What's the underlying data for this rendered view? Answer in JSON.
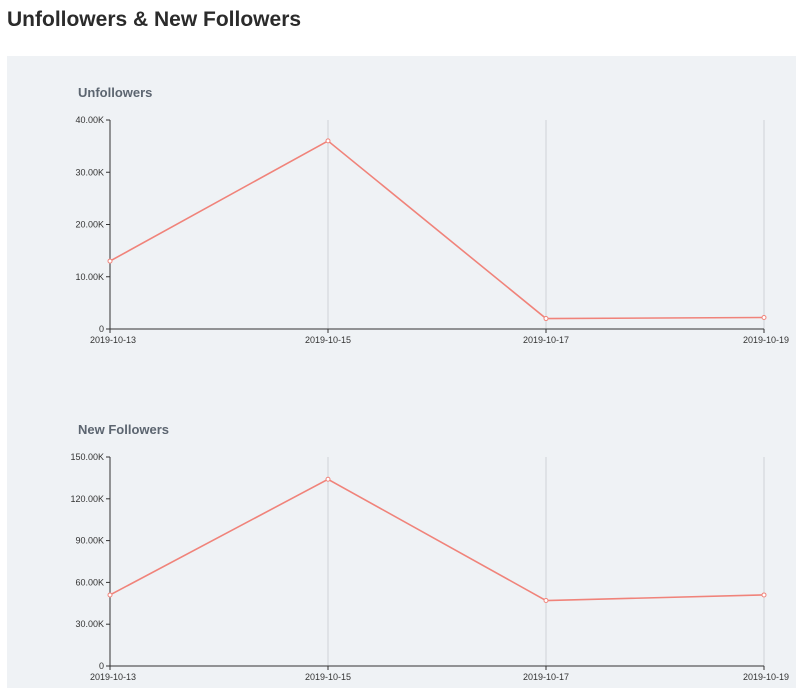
{
  "page_title": "Unfollowers & New Followers",
  "chart_data": [
    {
      "type": "line",
      "title": "Unfollowers",
      "x": [
        "2019-10-13",
        "2019-10-15",
        "2019-10-17",
        "2019-10-19"
      ],
      "values": [
        13000,
        36000,
        2000,
        2200
      ],
      "ylim": [
        0,
        40000
      ],
      "yticks": [
        0,
        10000,
        20000,
        30000,
        40000
      ],
      "ytick_labels": [
        "0",
        "10.00K",
        "20.00K",
        "30.00K",
        "40.00K"
      ],
      "grid": "vertical",
      "color": "#f0837a"
    },
    {
      "type": "line",
      "title": "New Followers",
      "x": [
        "2019-10-13",
        "2019-10-15",
        "2019-10-17",
        "2019-10-19"
      ],
      "values": [
        51000,
        134000,
        47000,
        51000
      ],
      "ylim": [
        0,
        150000
      ],
      "yticks": [
        0,
        30000,
        60000,
        90000,
        120000,
        150000
      ],
      "ytick_labels": [
        "0",
        "30.00K",
        "60.00K",
        "90.00K",
        "120.00K",
        "150.00K"
      ],
      "grid": "vertical",
      "color": "#f0837a"
    }
  ]
}
